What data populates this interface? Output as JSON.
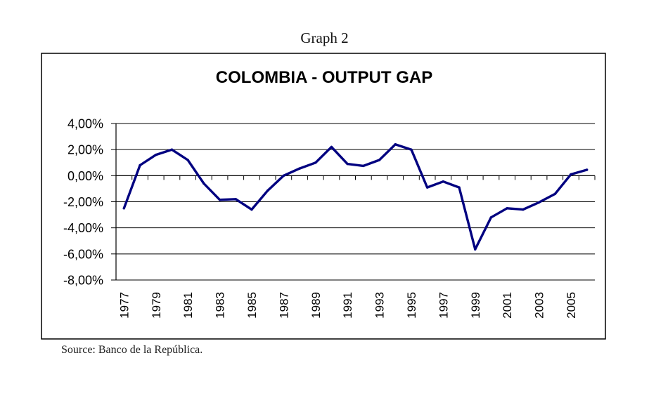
{
  "caption": "Graph 2",
  "source": "Source: Banco de la República.",
  "chart_data": {
    "type": "line",
    "title": "COLOMBIA - OUTPUT GAP",
    "xlabel": "",
    "ylabel": "",
    "ylim": [
      -8,
      4
    ],
    "yticks": [
      4,
      2,
      0,
      -2,
      -4,
      -6,
      -8
    ],
    "ytick_labels": [
      "4,00%",
      "2,00%",
      "0,00%",
      "-2,00%",
      "-4,00%",
      "-6,00%",
      "-8,00%"
    ],
    "grid": true,
    "legend": "none",
    "x": [
      1977,
      1978,
      1979,
      1980,
      1981,
      1982,
      1983,
      1984,
      1985,
      1986,
      1987,
      1988,
      1989,
      1990,
      1991,
      1992,
      1993,
      1994,
      1995,
      1996,
      1997,
      1998,
      1999,
      2000,
      2001,
      2002,
      2003,
      2004,
      2005,
      2006
    ],
    "xtick_labels": [
      "1977",
      "1979",
      "1981",
      "1983",
      "1985",
      "1987",
      "1989",
      "1991",
      "1993",
      "1995",
      "1997",
      "1999",
      "2001",
      "2003",
      "2005"
    ],
    "series": [
      {
        "name": "Output gap (%)",
        "color": "#000080",
        "values": [
          -2.5,
          0.8,
          1.6,
          2.0,
          1.2,
          -0.6,
          -1.85,
          -1.8,
          -2.6,
          -1.15,
          0.0,
          0.55,
          1.0,
          2.2,
          0.9,
          0.75,
          1.2,
          2.4,
          2.0,
          -0.9,
          -0.45,
          -0.9,
          -5.65,
          -3.2,
          -2.5,
          -2.6,
          -2.05,
          -1.4,
          0.1,
          0.45
        ]
      }
    ]
  }
}
